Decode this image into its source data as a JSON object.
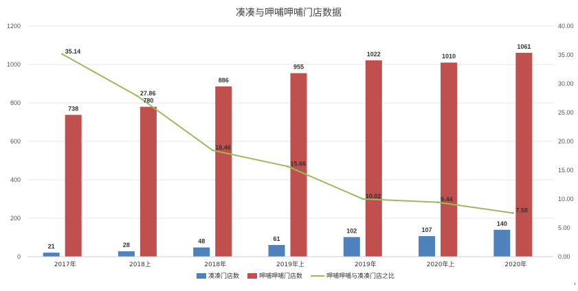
{
  "chart_data": {
    "type": "bar",
    "title": "凑凑与呷哺呷哺门店数据",
    "categories": [
      "2017年",
      "2018上",
      "2018年",
      "2019年上",
      "2019年",
      "2020年上",
      "2020年"
    ],
    "series": [
      {
        "name": "凑凑门店数",
        "type": "bar",
        "axis": "left",
        "color": "#4f81bd",
        "values": [
          21,
          28,
          48,
          61,
          102,
          107,
          140
        ]
      },
      {
        "name": "呷哺呷哺门店数",
        "type": "bar",
        "axis": "left",
        "color": "#c0504d",
        "values": [
          738,
          780,
          886,
          955,
          1022,
          1010,
          1061
        ]
      },
      {
        "name": "呷哺呷哺与凑凑门店之比",
        "type": "line",
        "axis": "right",
        "color": "#9bbb59",
        "values": [
          35.14,
          27.86,
          18.46,
          15.66,
          10.02,
          9.44,
          7.58
        ],
        "labels": [
          "35.14",
          "27.86",
          "18.46",
          "15.66",
          "10.02",
          "9.44",
          "7.58"
        ]
      }
    ],
    "ylim": [
      0,
      1200
    ],
    "yticks": [
      "0",
      "200",
      "400",
      "600",
      "800",
      "1000",
      "1200"
    ],
    "y2lim": [
      0,
      40
    ],
    "y2ticks": [
      "0.00",
      "5.00",
      "10.00",
      "15.00",
      "20.00",
      "25.00",
      "30.00",
      "35.00",
      "40.00"
    ],
    "grid": true,
    "legend_position": "bottom"
  }
}
